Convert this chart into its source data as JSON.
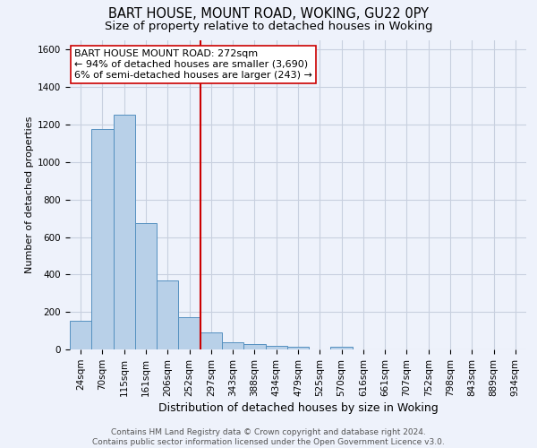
{
  "title": "BART HOUSE, MOUNT ROAD, WOKING, GU22 0PY",
  "subtitle": "Size of property relative to detached houses in Woking",
  "xlabel": "Distribution of detached houses by size in Woking",
  "ylabel": "Number of detached properties",
  "footer_line1": "Contains HM Land Registry data © Crown copyright and database right 2024.",
  "footer_line2": "Contains public sector information licensed under the Open Government Licence v3.0.",
  "bin_labels": [
    "24sqm",
    "70sqm",
    "115sqm",
    "161sqm",
    "206sqm",
    "252sqm",
    "297sqm",
    "343sqm",
    "388sqm",
    "434sqm",
    "479sqm",
    "525sqm",
    "570sqm",
    "616sqm",
    "661sqm",
    "707sqm",
    "752sqm",
    "798sqm",
    "843sqm",
    "889sqm",
    "934sqm"
  ],
  "bar_values": [
    155,
    1175,
    1255,
    675,
    370,
    170,
    90,
    37,
    27,
    18,
    15,
    0,
    14,
    0,
    0,
    0,
    0,
    0,
    0,
    0,
    0
  ],
  "bar_color": "#b8d0e8",
  "bar_edge_color": "#5590c0",
  "vline_color": "#cc0000",
  "annotation_text": "BART HOUSE MOUNT ROAD: 272sqm\n← 94% of detached houses are smaller (3,690)\n6% of semi-detached houses are larger (243) →",
  "annotation_box_edge": "#cc0000",
  "annotation_box_face": "#ffffff",
  "ylim": [
    0,
    1650
  ],
  "yticks": [
    0,
    200,
    400,
    600,
    800,
    1000,
    1200,
    1400,
    1600
  ],
  "bg_color": "#eef2fb",
  "plot_bg_color": "#eef2fb",
  "grid_color": "#c8d0df",
  "title_fontsize": 10.5,
  "subtitle_fontsize": 9.5,
  "xlabel_fontsize": 9,
  "ylabel_fontsize": 8,
  "footer_fontsize": 6.5,
  "tick_fontsize": 7.5,
  "annot_fontsize": 8
}
